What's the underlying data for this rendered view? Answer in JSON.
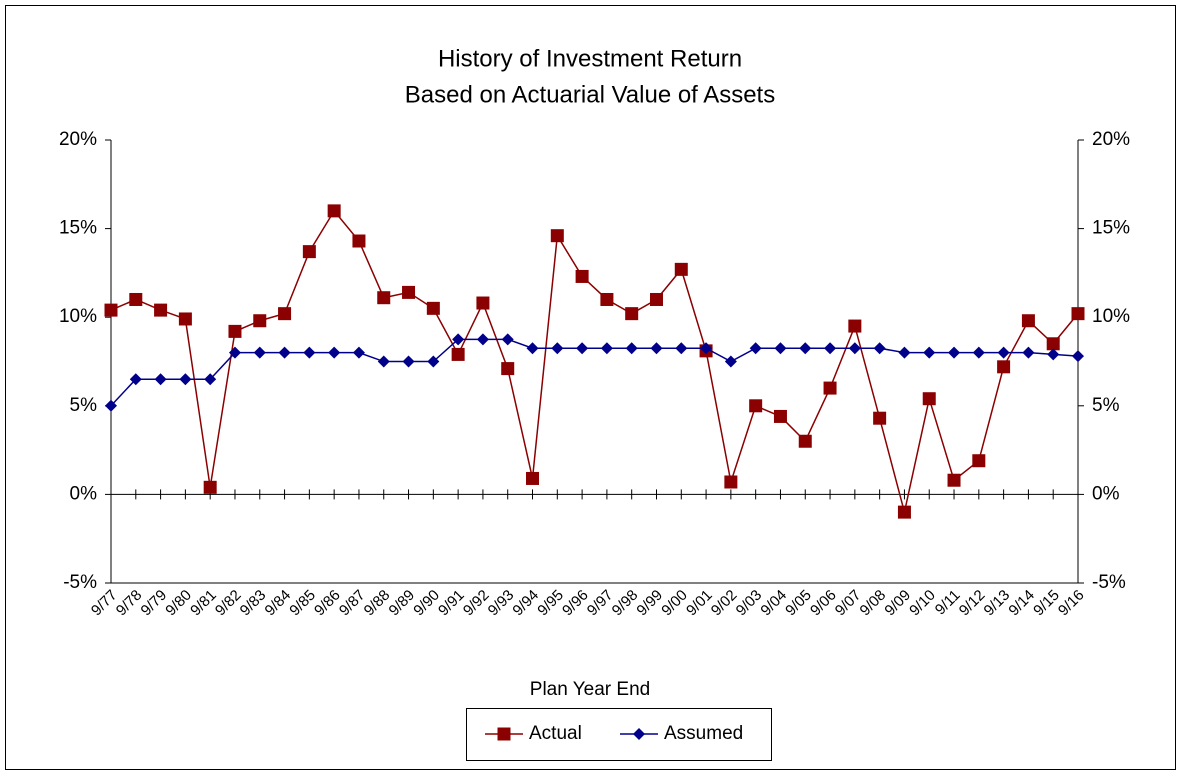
{
  "chart_data": {
    "type": "line",
    "title": "History of Investment Return",
    "subtitle": "Based on Actuarial Value of Assets",
    "x_label": "Plan Year End",
    "categories": [
      "9/77",
      "9/78",
      "9/79",
      "9/80",
      "9/81",
      "9/82",
      "9/83",
      "9/84",
      "9/85",
      "9/86",
      "9/87",
      "9/88",
      "9/89",
      "9/90",
      "9/91",
      "9/92",
      "9/93",
      "9/94",
      "9/95",
      "9/96",
      "9/97",
      "9/98",
      "9/99",
      "9/00",
      "9/01",
      "9/02",
      "9/03",
      "9/04",
      "9/05",
      "9/06",
      "9/07",
      "9/08",
      "9/09",
      "9/10",
      "9/11",
      "9/12",
      "9/13",
      "9/14",
      "9/15",
      "9/16"
    ],
    "series": [
      {
        "name": "Actual",
        "color": "#8b0000",
        "marker": "square",
        "values": [
          10.4,
          11.0,
          10.4,
          9.9,
          0.4,
          9.2,
          9.8,
          10.2,
          13.7,
          16.0,
          14.3,
          11.1,
          11.4,
          10.5,
          7.9,
          10.8,
          7.1,
          0.9,
          14.6,
          12.3,
          11.0,
          10.2,
          11.0,
          12.7,
          8.1,
          0.7,
          5.0,
          4.4,
          3.0,
          6.0,
          9.5,
          4.3,
          -1.0,
          5.4,
          0.8,
          1.9,
          7.2,
          9.8,
          8.5,
          10.2
        ]
      },
      {
        "name": "Assumed",
        "color": "#00008b",
        "marker": "diamond",
        "values": [
          5.0,
          6.5,
          6.5,
          6.5,
          6.5,
          8.0,
          8.0,
          8.0,
          8.0,
          8.0,
          8.0,
          7.5,
          7.5,
          7.5,
          8.75,
          8.75,
          8.75,
          8.25,
          8.25,
          8.25,
          8.25,
          8.25,
          8.25,
          8.25,
          8.25,
          7.5,
          8.25,
          8.25,
          8.25,
          8.25,
          8.25,
          8.25,
          8.0,
          8.0,
          8.0,
          8.0,
          8.0,
          8.0,
          7.9,
          7.8
        ]
      }
    ],
    "ylim": [
      -5,
      20
    ],
    "yticks": [
      {
        "value": -5,
        "label": "-5%"
      },
      {
        "value": 0,
        "label": "0%"
      },
      {
        "value": 5,
        "label": "5%"
      },
      {
        "value": 10,
        "label": "10%"
      },
      {
        "value": 15,
        "label": "15%"
      },
      {
        "value": 20,
        "label": "20%"
      }
    ],
    "y2lim": [
      -5,
      20
    ],
    "y2ticks": [
      {
        "value": -5,
        "label": "-5%"
      },
      {
        "value": 0,
        "label": "0%"
      },
      {
        "value": 5,
        "label": "5%"
      },
      {
        "value": 10,
        "label": "10%"
      },
      {
        "value": 15,
        "label": "15%"
      },
      {
        "value": 20,
        "label": "20%"
      }
    ],
    "grid": false,
    "legend": "bottom"
  }
}
